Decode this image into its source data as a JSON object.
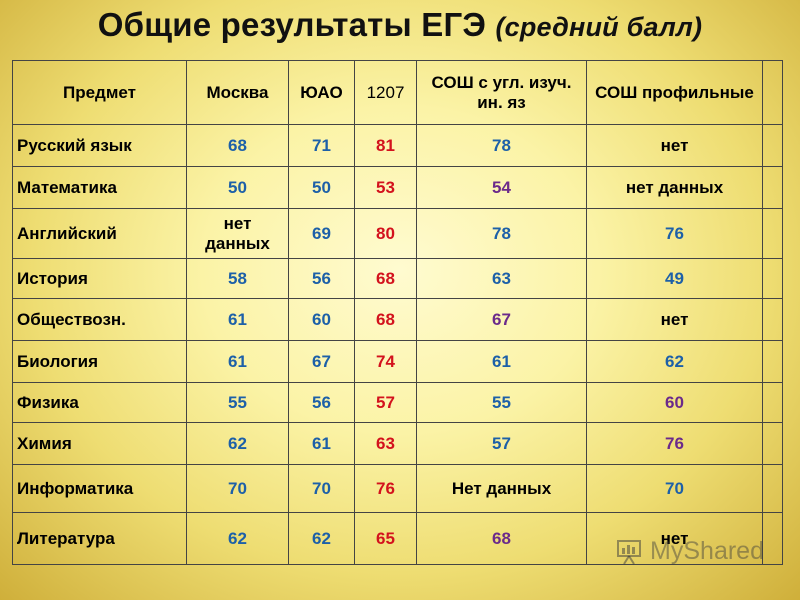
{
  "title": {
    "main": "Общие результаты ЕГЭ",
    "sub": "(средний балл)"
  },
  "table": {
    "headers": [
      "Предмет",
      "Москва",
      "ЮАО",
      "1207",
      "СОШ с угл. изуч. ин. яз",
      "СОШ профильные",
      ""
    ],
    "rows": [
      {
        "subject": "Русский язык",
        "cells": [
          "68",
          "71",
          "81",
          "78",
          "нет"
        ]
      },
      {
        "subject": "Математика",
        "cells": [
          "50",
          "50",
          "53",
          "54",
          "нет данных"
        ]
      },
      {
        "subject": "Английский",
        "cells": [
          "нет данных",
          "69",
          "80",
          "78",
          "76"
        ]
      },
      {
        "subject": "История",
        "cells": [
          "58",
          "56",
          "68",
          "63",
          "49"
        ]
      },
      {
        "subject": "Обществозн.",
        "cells": [
          "61",
          "60",
          "68",
          "67",
          "нет"
        ]
      },
      {
        "subject": "Биология",
        "cells": [
          "61",
          "67",
          "74",
          "61",
          "62"
        ]
      },
      {
        "subject": "Физика",
        "cells": [
          "55",
          "56",
          "57",
          "55",
          "60"
        ]
      },
      {
        "subject": "Химия",
        "cells": [
          "62",
          "61",
          "63",
          "57",
          "76"
        ]
      },
      {
        "subject": "Информатика",
        "cells": [
          "70",
          "70",
          "76",
          "Нет данных",
          "70"
        ]
      },
      {
        "subject": "Литература",
        "cells": [
          "62",
          "62",
          "65",
          "68",
          "нет"
        ]
      }
    ],
    "cell_colors": [
      [
        "black",
        "blue",
        "blue",
        "red",
        "blue",
        "black"
      ],
      [
        "black",
        "blue",
        "blue",
        "red",
        "purple",
        "black"
      ],
      [
        "black",
        "black",
        "blue",
        "red",
        "blue",
        "blue"
      ],
      [
        "black",
        "blue",
        "blue",
        "red",
        "blue",
        "blue"
      ],
      [
        "black",
        "blue",
        "blue",
        "red",
        "purple",
        "black"
      ],
      [
        "black",
        "blue",
        "blue",
        "red",
        "blue",
        "blue"
      ],
      [
        "black",
        "blue",
        "blue",
        "red",
        "blue",
        "purple"
      ],
      [
        "black",
        "blue",
        "blue",
        "red",
        "blue",
        "purple"
      ],
      [
        "black",
        "blue",
        "blue",
        "red",
        "black",
        "blue"
      ],
      [
        "black",
        "blue",
        "blue",
        "red",
        "purple",
        "black"
      ]
    ],
    "header_colors": [
      "black",
      "black",
      "black",
      "red",
      "black",
      "black",
      "black"
    ]
  },
  "watermark": {
    "text": "MyShared",
    "icon": "presentation-icon"
  }
}
